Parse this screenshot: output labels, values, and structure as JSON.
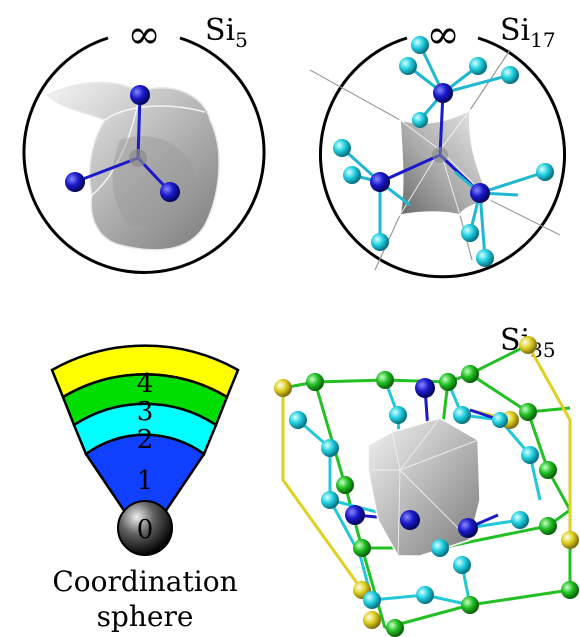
{
  "panels": {
    "si5": {
      "base": "Si",
      "sub": "5",
      "infinity": "∞"
    },
    "si17": {
      "base": "Si",
      "sub": "17",
      "infinity": "∞"
    },
    "si35": {
      "base": "Si",
      "sub": "35"
    }
  },
  "legend": {
    "levels": [
      "4",
      "3",
      "2",
      "1",
      "0"
    ],
    "caption_line1": "Coordination",
    "caption_line2": "sphere"
  },
  "colors": {
    "level0": "#1a1a1a",
    "level1": "#1040ff",
    "level2": "#00ffff",
    "level3": "#00dd00",
    "level4": "#ffff00",
    "atom_blue": "#1a1acc",
    "atom_cyan": "#20d0e0",
    "atom_green": "#22c022",
    "atom_yellow": "#e0d020",
    "surface": "#c8c8c8"
  }
}
